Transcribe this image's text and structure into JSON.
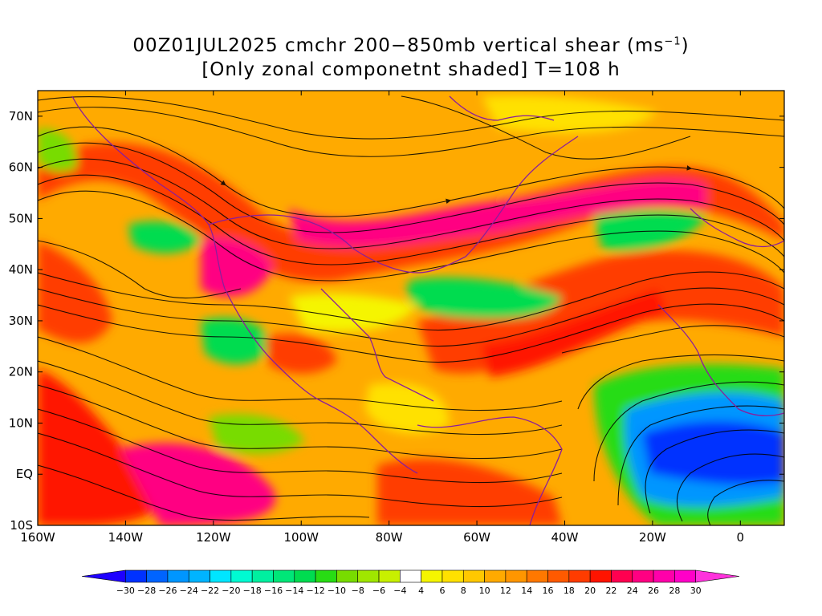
{
  "title": {
    "line1_text": "00Z01JUL2025 cmchr 200−850mb vertical shear (ms",
    "line1_unit_sup": "−1",
    "line1_close": ")",
    "line2": "[Only zonal componetnt shaded] T=108 h"
  },
  "map": {
    "lon_range": [
      -160,
      10
    ],
    "lat_range": [
      -10,
      75
    ],
    "lon_ticks": [
      {
        "value": -160,
        "label": "160W"
      },
      {
        "value": -140,
        "label": "140W"
      },
      {
        "value": -120,
        "label": "120W"
      },
      {
        "value": -100,
        "label": "100W"
      },
      {
        "value": -80,
        "label": "80W"
      },
      {
        "value": -60,
        "label": "60W"
      },
      {
        "value": -40,
        "label": "40W"
      },
      {
        "value": -20,
        "label": "20W"
      },
      {
        "value": 0,
        "label": "0"
      }
    ],
    "lat_ticks": [
      {
        "value": 70,
        "label": "70N"
      },
      {
        "value": 60,
        "label": "60N"
      },
      {
        "value": 50,
        "label": "50N"
      },
      {
        "value": 40,
        "label": "40N"
      },
      {
        "value": 30,
        "label": "30N"
      },
      {
        "value": 20,
        "label": "20N"
      },
      {
        "value": 10,
        "label": "10N"
      },
      {
        "value": 0,
        "label": "EQ"
      },
      {
        "value": -10,
        "label": "10S"
      }
    ],
    "shading": "zonal component of 200-850mb vertical shear (ms-1)",
    "overlay": "black shear streamlines, purple coastlines"
  },
  "colorbar": {
    "labels": [
      "−30",
      "−28",
      "−26",
      "−24",
      "−22",
      "−20",
      "−18",
      "−16",
      "−14",
      "−12",
      "−10",
      "−8",
      "−6",
      "−4",
      "4",
      "6",
      "8",
      "10",
      "12",
      "14",
      "16",
      "18",
      "20",
      "22",
      "24",
      "26",
      "28",
      "30"
    ],
    "colors": [
      "#1e00ff",
      "#0032ff",
      "#0064ff",
      "#0096ff",
      "#00b4ff",
      "#00e6ff",
      "#00fad2",
      "#00f0a0",
      "#00e678",
      "#00dc50",
      "#28dc14",
      "#78dc00",
      "#a0e600",
      "#c8f000",
      "#ffffff",
      "#f5f500",
      "#ffe100",
      "#ffc800",
      "#ffaa00",
      "#ff9600",
      "#ff7800",
      "#ff5a00",
      "#ff3c00",
      "#ff1400",
      "#ff0050",
      "#ff0082",
      "#ff00aa",
      "#ff00c8",
      "#ff32dc"
    ]
  }
}
